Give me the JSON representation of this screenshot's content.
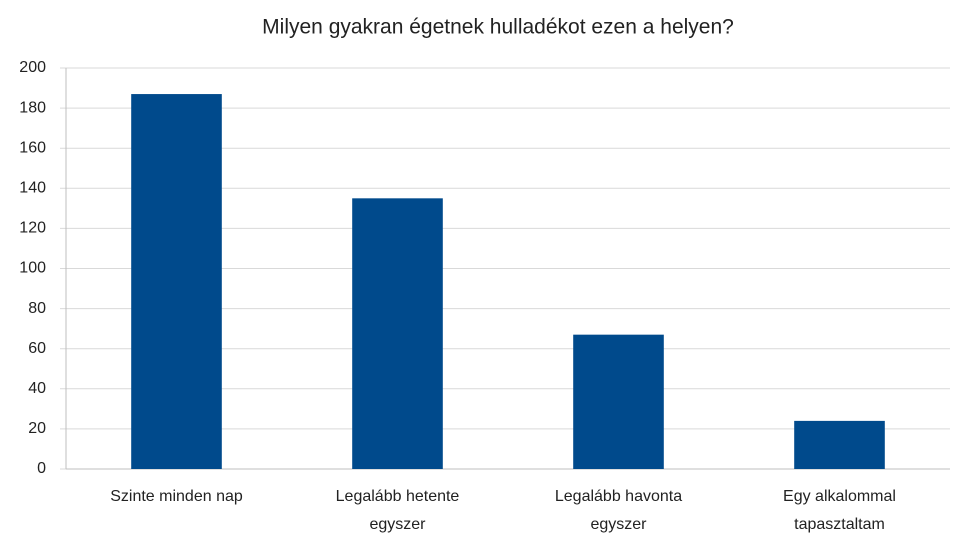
{
  "chart_data": {
    "type": "bar",
    "title": "Milyen gyakran égetnek hulladékot ezen a helyen?",
    "categories": [
      "Szinte minden nap",
      "Legalább hetente egyszer",
      "Legalább havonta egyszer",
      "Egy alkalommal tapasztaltam"
    ],
    "values": [
      187,
      135,
      67,
      24
    ],
    "color": "#004a8c",
    "ylim": [
      0,
      200
    ],
    "yticks": [
      0,
      20,
      40,
      60,
      80,
      100,
      120,
      140,
      160,
      180,
      200
    ],
    "grid": true
  }
}
